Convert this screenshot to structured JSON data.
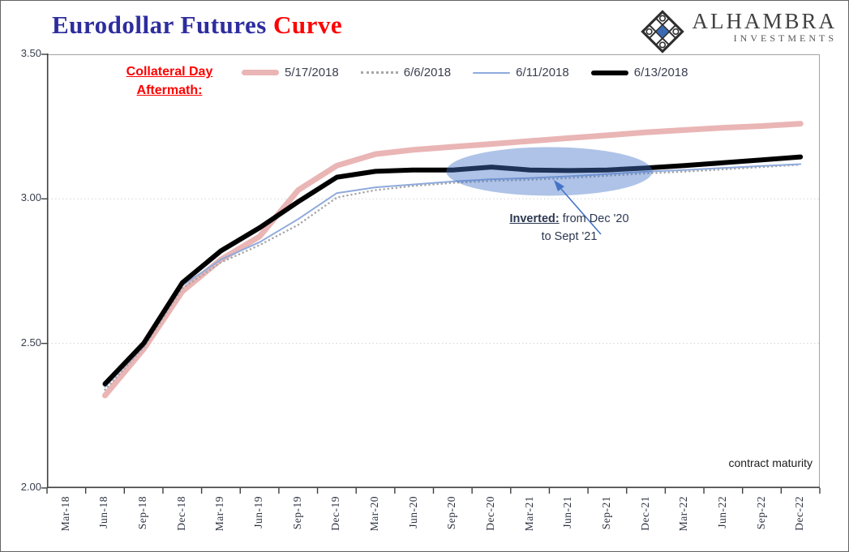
{
  "page": {
    "background": "#ffffff",
    "border_color": "#636363"
  },
  "header": {
    "title": {
      "part1": "Eurodollar Futures ",
      "part2": "Curve",
      "part1_color": "#2d2d9e",
      "part2_color": "#fe0000"
    },
    "logo": {
      "name": "ALHAMBRA",
      "subtitle": "INVESTMENTS",
      "icon": "diamond-lattice-icon",
      "icon_accent": "#3a6ab2",
      "icon_dark": "#2e2e2e"
    }
  },
  "annotations": {
    "collateral": {
      "line1": "Collateral Day",
      "line2": "Aftermath:",
      "color": "#fe0000"
    },
    "inverted": {
      "bold": "Inverted:",
      "rest": " from Dec '20",
      "line2": "to Sept '21"
    },
    "axis_note": "contract maturity"
  },
  "chart_data": {
    "type": "line",
    "title": "Eurodollar Futures Curve",
    "xlabel": "contract maturity",
    "ylabel": "",
    "ylim": [
      2.0,
      3.5
    ],
    "yticks": [
      {
        "label": "3.50",
        "value": 3.5
      },
      {
        "label": "3.00",
        "value": 3.0
      },
      {
        "label": "2.50",
        "value": 2.5
      },
      {
        "label": "2.00",
        "value": 2.0
      }
    ],
    "grid_values": [
      3.0,
      2.5
    ],
    "grid": "horizontal dotted",
    "legend_position": "top",
    "categories": [
      "Mar-18",
      "Jun-18",
      "Sep-18",
      "Dec-18",
      "Mar-19",
      "Jun-19",
      "Sep-19",
      "Dec-19",
      "Mar-20",
      "Jun-20",
      "Sep-20",
      "Dec-20",
      "Mar-21",
      "Jun-21",
      "Sep-21",
      "Dec-21",
      "Mar-22",
      "Jun-22",
      "Sep-22",
      "Dec-22"
    ],
    "x_start_index": 1,
    "series": [
      {
        "name": "5/17/2018",
        "color": "#eab5b5",
        "width": 7,
        "style": "solid",
        "values": [
          2.32,
          2.48,
          2.68,
          2.79,
          2.87,
          3.03,
          3.115,
          3.155,
          3.17,
          3.18,
          3.19,
          3.2,
          3.21,
          3.22,
          3.23,
          3.238,
          3.246,
          3.252,
          3.26
        ]
      },
      {
        "name": "6/6/2018",
        "color": "#a6a6a6",
        "width": 2.5,
        "style": "dotted",
        "values": [
          2.34,
          2.485,
          2.69,
          2.78,
          2.84,
          2.91,
          3.005,
          3.03,
          3.045,
          3.055,
          3.062,
          3.066,
          3.072,
          3.08,
          3.088,
          3.094,
          3.102,
          3.11,
          3.118
        ]
      },
      {
        "name": "6/11/2018",
        "color": "#8faadc",
        "width": 2,
        "style": "solid",
        "values": [
          2.35,
          2.49,
          2.7,
          2.79,
          2.85,
          2.93,
          3.02,
          3.04,
          3.05,
          3.06,
          3.068,
          3.072,
          3.078,
          3.086,
          3.094,
          3.1,
          3.107,
          3.114,
          3.12
        ]
      },
      {
        "name": "6/13/2018",
        "color": "#000000",
        "width": 6,
        "style": "solid",
        "values": [
          2.36,
          2.5,
          2.71,
          2.82,
          2.9,
          2.99,
          3.075,
          3.095,
          3.1,
          3.1,
          3.11,
          3.1,
          3.098,
          3.1,
          3.107,
          3.115,
          3.125,
          3.135,
          3.145
        ]
      }
    ],
    "highlight": {
      "shape": "ellipse",
      "x_from": "Sep-20",
      "x_to": "Dec-21",
      "y_center": 3.095,
      "color": "#4474c8",
      "opacity": 0.43,
      "label": "inverted segment highlight"
    }
  }
}
